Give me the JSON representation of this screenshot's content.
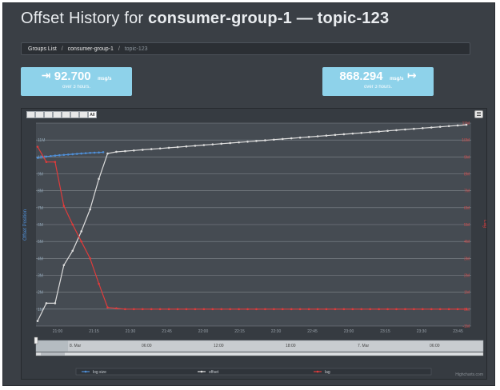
{
  "page": {
    "title_prefix": "Offset History for",
    "group": "consumer-group-1",
    "dash": "—",
    "topic": "topic-123"
  },
  "breadcrumb": {
    "items": [
      {
        "label": "Groups List"
      },
      {
        "label": "consumer-group-1"
      },
      {
        "label": "topic-123"
      }
    ],
    "separator": "/"
  },
  "rates": {
    "in": {
      "value": "92.700",
      "unit": "msg/s",
      "sub": "over 3 hours.",
      "icon": "sign-in-icon"
    },
    "out": {
      "value": "868.294",
      "unit": "msg/s",
      "sub": "over 3 hours.",
      "icon": "sign-out-icon"
    }
  },
  "chart": {
    "range_buttons": [
      "",
      "",
      "",
      "",
      "",
      "",
      "",
      "All"
    ],
    "left_axis_title": "Offset Position",
    "right_axis_title": "Lag",
    "credit": "Highcharts.com",
    "navigator_labels": [
      "8. Mar",
      "06:00",
      "12:00",
      "18:00",
      "7. Mar",
      "06:00"
    ],
    "legend": [
      {
        "name": "log size",
        "color": "#4f8fd8"
      },
      {
        "name": "offset",
        "color": "#dddddd"
      },
      {
        "name": "lag",
        "color": "#e03b3b"
      }
    ]
  },
  "chart_data": {
    "type": "line",
    "x_ticks": [
      "21:00",
      "21:15",
      "21:30",
      "21:45",
      "22:00",
      "22:15",
      "22:30",
      "22:45",
      "23:00",
      "23:15",
      "23:30",
      "23:45"
    ],
    "left_ticks": [
      "11M",
      "10M",
      "9M",
      "8M",
      "7M",
      "6M",
      "5M",
      "4M",
      "3M",
      "2M",
      "1M"
    ],
    "right_ticks": [
      "11M",
      "10M",
      "9M",
      "8M",
      "7M",
      "6M",
      "5M",
      "4M",
      "3M",
      "2M",
      "1M",
      "0M",
      "-1M"
    ],
    "series": [
      {
        "name": "log size",
        "color": "#4f8fd8",
        "axis": "left",
        "points": [
          [
            0,
            9.95
          ],
          [
            0.5,
            10.0
          ],
          [
            1,
            10.02
          ],
          [
            1.5,
            10.05
          ],
          [
            2,
            10.08
          ],
          [
            2.5,
            10.1
          ],
          [
            3,
            10.12
          ],
          [
            3.5,
            10.14
          ],
          [
            4,
            10.16
          ],
          [
            4.5,
            10.18
          ],
          [
            5,
            10.2
          ],
          [
            5.5,
            10.22
          ],
          [
            6,
            10.24
          ],
          [
            6.5,
            10.25
          ],
          [
            7,
            10.26
          ],
          [
            7.5,
            10.28
          ]
        ]
      },
      {
        "name": "offset",
        "color": "#dddddd",
        "axis": "left",
        "points": [
          [
            0,
            0.3
          ],
          [
            1,
            1.35
          ],
          [
            2,
            1.35
          ],
          [
            3,
            3.6
          ],
          [
            4,
            4.45
          ],
          [
            5,
            5.6
          ],
          [
            6,
            6.9
          ],
          [
            7,
            8.7
          ],
          [
            8,
            10.2
          ],
          [
            9,
            10.3
          ],
          [
            10,
            10.34
          ],
          [
            11,
            10.38
          ],
          [
            12,
            10.42
          ],
          [
            13,
            10.46
          ],
          [
            14,
            10.5
          ],
          [
            15,
            10.54
          ],
          [
            16,
            10.58
          ],
          [
            17,
            10.62
          ],
          [
            18,
            10.66
          ],
          [
            19,
            10.7
          ],
          [
            20,
            10.74
          ],
          [
            21,
            10.78
          ],
          [
            22,
            10.82
          ],
          [
            23,
            10.86
          ],
          [
            24,
            10.9
          ],
          [
            25,
            10.94
          ],
          [
            26,
            10.98
          ],
          [
            27,
            11.02
          ],
          [
            28,
            11.06
          ],
          [
            29,
            11.1
          ],
          [
            30,
            11.14
          ],
          [
            31,
            11.18
          ],
          [
            32,
            11.22
          ],
          [
            33,
            11.26
          ],
          [
            34,
            11.3
          ],
          [
            35,
            11.34
          ],
          [
            36,
            11.38
          ],
          [
            37,
            11.42
          ],
          [
            38,
            11.46
          ],
          [
            39,
            11.5
          ],
          [
            40,
            11.54
          ],
          [
            41,
            11.58
          ],
          [
            42,
            11.62
          ],
          [
            43,
            11.66
          ],
          [
            44,
            11.7
          ],
          [
            45,
            11.74
          ],
          [
            46,
            11.78
          ],
          [
            47,
            11.82
          ],
          [
            48,
            11.86
          ],
          [
            49,
            11.9
          ]
        ]
      },
      {
        "name": "lag",
        "color": "#e03b3b",
        "axis": "right",
        "points": [
          [
            0,
            9.6
          ],
          [
            1,
            8.7
          ],
          [
            2,
            8.7
          ],
          [
            3,
            6.1
          ],
          [
            4,
            5.0
          ],
          [
            5,
            4.0
          ],
          [
            6,
            3.0
          ],
          [
            7,
            1.5
          ],
          [
            8,
            0.1
          ],
          [
            9,
            0.05
          ],
          [
            10,
            0.0
          ],
          [
            11,
            0.0
          ],
          [
            12,
            0.0
          ],
          [
            13,
            0.0
          ],
          [
            14,
            0.0
          ],
          [
            15,
            0.0
          ],
          [
            16,
            0.0
          ],
          [
            17,
            0.0
          ],
          [
            18,
            0.0
          ],
          [
            19,
            0.0
          ],
          [
            20,
            0.0
          ],
          [
            21,
            0.0
          ],
          [
            22,
            0.0
          ],
          [
            23,
            0.0
          ],
          [
            24,
            0.0
          ],
          [
            25,
            0.0
          ],
          [
            26,
            0.0
          ],
          [
            27,
            0.0
          ],
          [
            28,
            0.0
          ],
          [
            29,
            0.0
          ],
          [
            30,
            0.0
          ],
          [
            31,
            0.0
          ],
          [
            32,
            0.0
          ],
          [
            33,
            0.0
          ],
          [
            34,
            0.0
          ],
          [
            35,
            0.0
          ],
          [
            36,
            0.0
          ],
          [
            37,
            0.0
          ],
          [
            38,
            0.0
          ],
          [
            39,
            0.0
          ],
          [
            40,
            0.0
          ],
          [
            41,
            0.0
          ],
          [
            42,
            0.0
          ],
          [
            43,
            0.0
          ],
          [
            44,
            0.0
          ],
          [
            45,
            0.0
          ],
          [
            46,
            0.0
          ],
          [
            47,
            0.0
          ],
          [
            48,
            0.0
          ],
          [
            49,
            0.0
          ]
        ]
      }
    ],
    "left_ylim": [
      0,
      12
    ],
    "right_ylim": [
      -1,
      11
    ],
    "grid": true,
    "legend_position": "bottom"
  }
}
